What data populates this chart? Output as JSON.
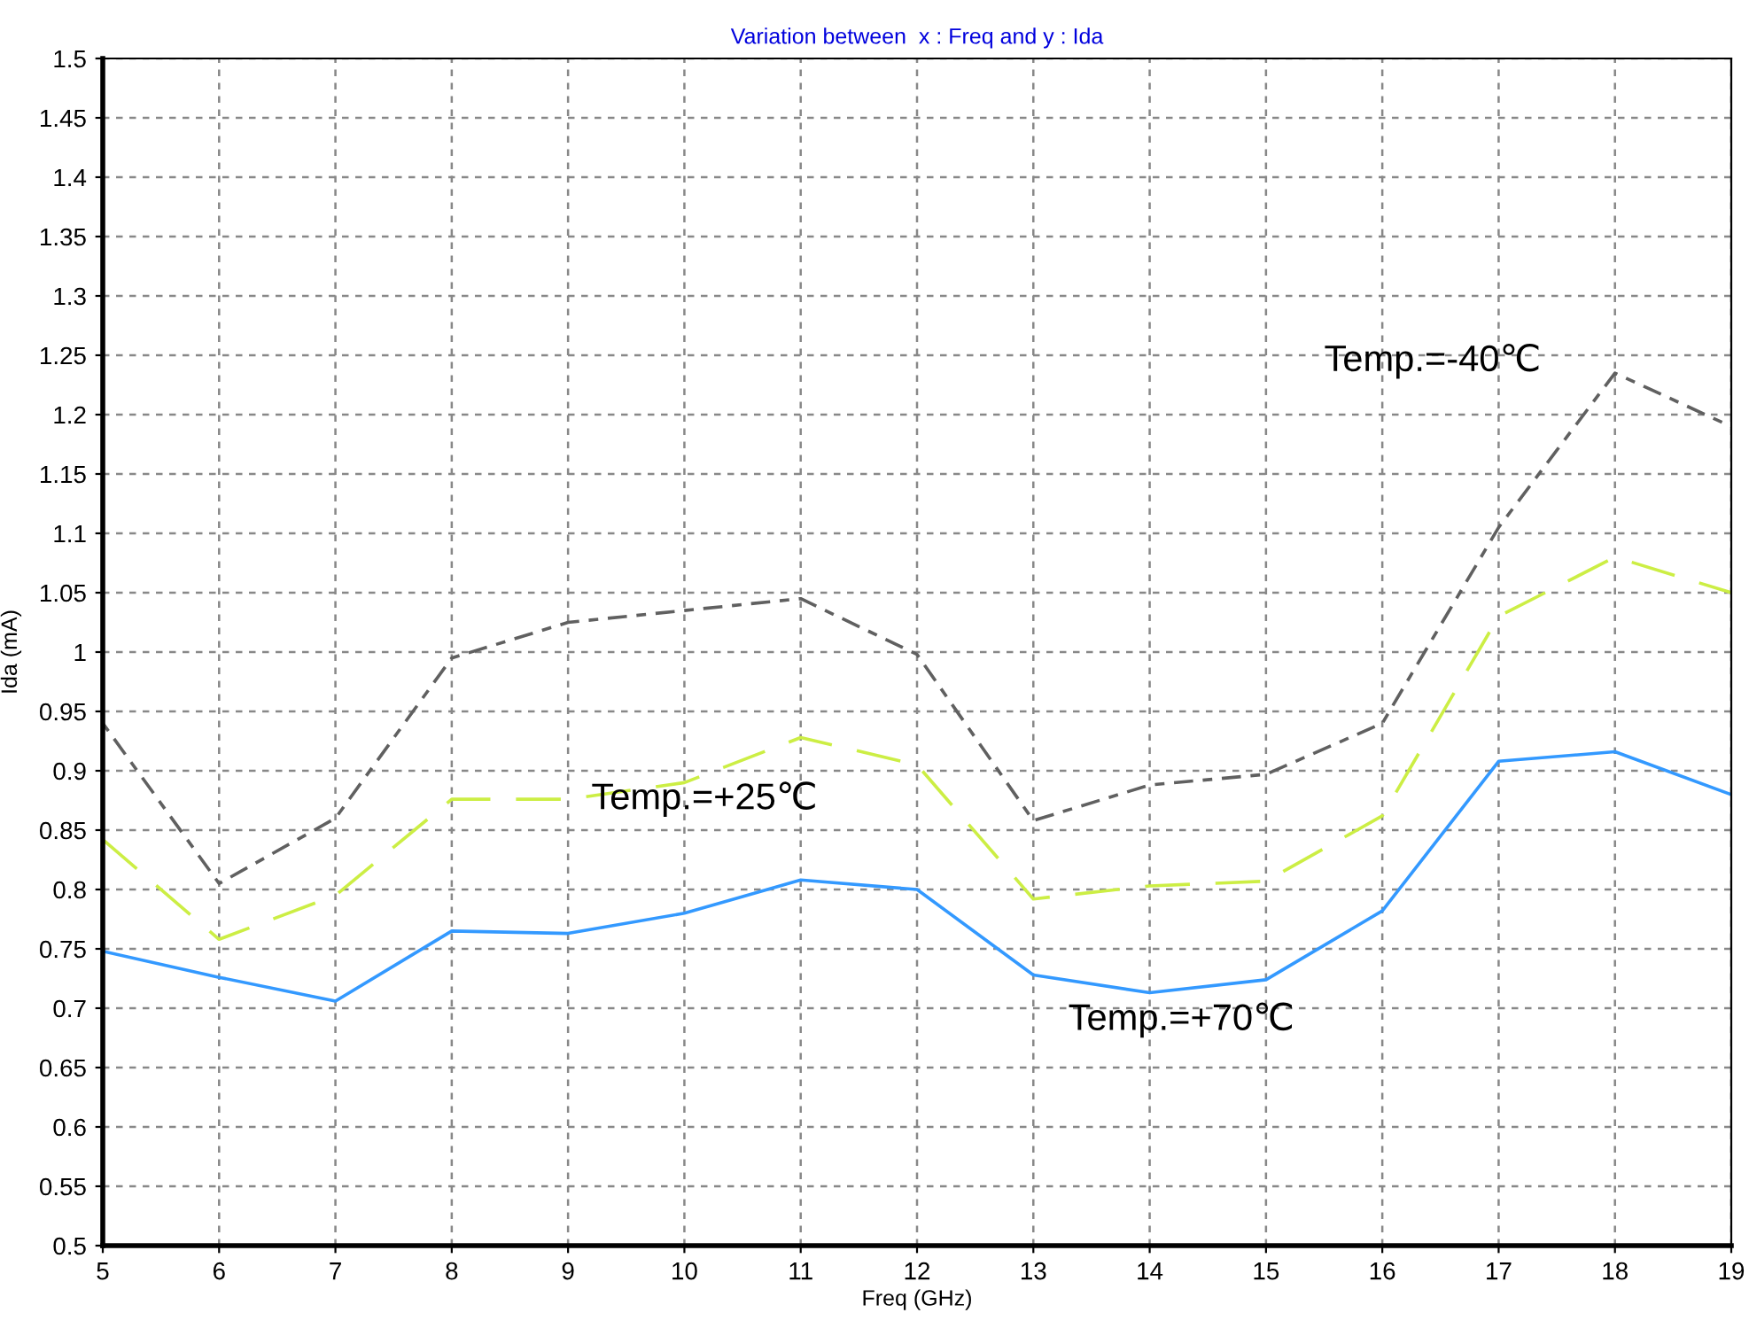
{
  "chart_data": {
    "type": "line",
    "title": "Variation between  x : Freq and y : Ida",
    "xlabel": "Freq (GHz)",
    "ylabel": "Ida (mA)",
    "x": [
      5,
      6,
      7,
      8,
      9,
      10,
      11,
      12,
      13,
      14,
      15,
      16,
      17,
      18,
      19
    ],
    "series": [
      {
        "name": "Temp.=-40℃",
        "color": "#606060",
        "line_style": "dashed",
        "values": [
          0.94,
          0.805,
          0.86,
          0.995,
          1.025,
          1.035,
          1.045,
          0.998,
          0.858,
          0.888,
          0.897,
          0.94,
          1.105,
          1.235,
          1.19
        ]
      },
      {
        "name": "Temp.=+25℃",
        "color": "#ccee44",
        "line_style": "dashed",
        "values": [
          0.842,
          0.758,
          0.795,
          0.876,
          0.876,
          0.89,
          0.928,
          0.905,
          0.792,
          0.803,
          0.807,
          0.862,
          1.03,
          1.08,
          1.05
        ]
      },
      {
        "name": "Temp.=+70℃",
        "color": "#3399ff",
        "line_style": "solid",
        "values": [
          0.748,
          0.726,
          0.706,
          0.765,
          0.763,
          0.78,
          0.808,
          0.8,
          0.728,
          0.713,
          0.724,
          0.782,
          0.908,
          0.916,
          0.88
        ]
      }
    ],
    "xlim": [
      5,
      19
    ],
    "xticks": [
      5,
      6,
      7,
      8,
      9,
      10,
      11,
      12,
      13,
      14,
      15,
      16,
      17,
      18,
      19
    ],
    "ylim": [
      0.5,
      1.5
    ],
    "yticks": [
      0.5,
      0.55,
      0.6,
      0.65,
      0.7,
      0.75,
      0.8,
      0.85,
      0.9,
      0.95,
      1,
      1.05,
      1.1,
      1.15,
      1.2,
      1.25,
      1.3,
      1.35,
      1.4,
      1.45,
      1.5
    ],
    "grid": true,
    "legend": false,
    "marker": "none"
  }
}
